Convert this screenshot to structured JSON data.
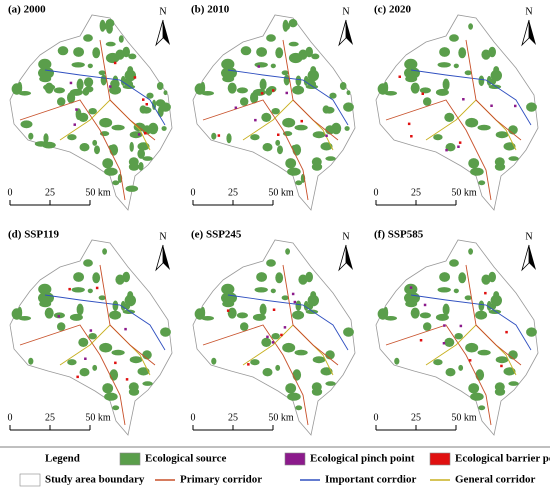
{
  "panels": [
    {
      "label": "(a) 2000",
      "north": "N",
      "scale": [
        "0",
        "25",
        "50 km"
      ],
      "green": 1.0
    },
    {
      "label": "(b) 2010",
      "north": "N",
      "scale": [
        "0",
        "25",
        "50 km"
      ],
      "green": 0.8
    },
    {
      "label": "(c) 2020",
      "north": "N",
      "scale": [
        "0",
        "25",
        "50 km"
      ],
      "green": 0.45
    },
    {
      "label": "(d) SSP119",
      "north": "N",
      "scale": [
        "0",
        "25",
        "50 km"
      ],
      "green": 0.5
    },
    {
      "label": "(e) SSP245",
      "north": "N",
      "scale": [
        "0",
        "25",
        "50 km"
      ],
      "green": 0.5
    },
    {
      "label": "(f) SSP585",
      "north": "N",
      "scale": [
        "0",
        "25",
        "50 km"
      ],
      "green": 0.5
    }
  ],
  "legend": {
    "title": "Legend",
    "items": [
      {
        "text": "Ecological source",
        "kind": "box",
        "color": "#5a9e4b"
      },
      {
        "text": "Ecological pinch point",
        "kind": "box",
        "color": "#8b1a8b"
      },
      {
        "text": "Ecological barrier point",
        "kind": "box",
        "color": "#e01010"
      },
      {
        "text": "Study area boundary",
        "kind": "box",
        "color": "#ffffff"
      },
      {
        "text": "Primary corridor",
        "kind": "line",
        "color": "#c8502a"
      },
      {
        "text": "Important corrdior",
        "kind": "line",
        "color": "#3050c0"
      },
      {
        "text": "General corridor",
        "kind": "line",
        "color": "#c8b020"
      }
    ]
  }
}
